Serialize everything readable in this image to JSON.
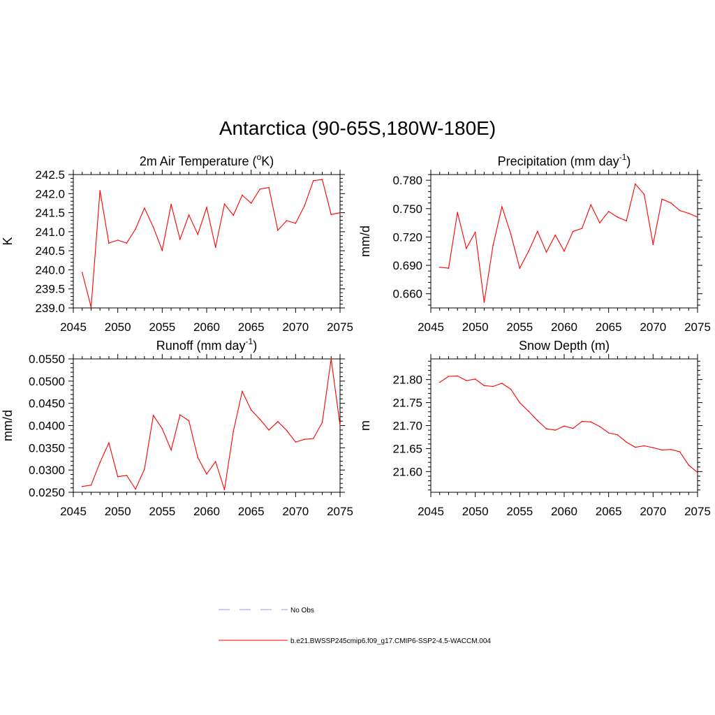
{
  "figure": {
    "title": "Antarctica (90-65S,180W-180E)"
  },
  "colors": {
    "model_line": "#ff0000",
    "obs_line": "#aaaaee",
    "axis": "#000000"
  },
  "legend": {
    "obs_label": "No Obs",
    "model_label": "b.e21.BWSSP245cmip6.f09_g17.CMIP6-SSP2-4.5-WACCM.004"
  },
  "chart_data": [
    {
      "type": "line",
      "title": "2m Air Temperature (°K)",
      "title_parts": {
        "before": "2m Air Temperature (",
        "sup": "o",
        "after": "K)"
      },
      "ylabel": "K",
      "xlim": [
        2045,
        2075
      ],
      "ylim": [
        239.0,
        242.5
      ],
      "xticks": [
        2045,
        2050,
        2055,
        2060,
        2065,
        2070,
        2075
      ],
      "yticks": [
        239.0,
        239.5,
        240.0,
        240.5,
        241.0,
        241.5,
        242.0,
        242.5
      ],
      "ytick_labels": [
        "239.0",
        "239.5",
        "240.0",
        "240.5",
        "241.0",
        "241.5",
        "242.0",
        "242.5"
      ],
      "x": [
        2046,
        2047,
        2048,
        2049,
        2050,
        2051,
        2052,
        2053,
        2054,
        2055,
        2056,
        2057,
        2058,
        2059,
        2060,
        2061,
        2062,
        2063,
        2064,
        2065,
        2066,
        2067,
        2068,
        2069,
        2070,
        2071,
        2072,
        2073,
        2074,
        2075
      ],
      "series": [
        {
          "name": "b.e21.BWSSP245cmip6.f09_g17.CMIP6-SSP2-4.5-WACCM.004",
          "values": [
            239.93,
            239.02,
            242.08,
            240.7,
            240.78,
            240.7,
            241.07,
            241.62,
            241.12,
            240.51,
            241.72,
            240.8,
            241.44,
            240.93,
            241.64,
            240.59,
            241.73,
            241.43,
            241.96,
            241.75,
            242.12,
            242.16,
            241.04,
            241.29,
            241.22,
            241.68,
            242.34,
            242.37,
            241.45,
            241.5
          ]
        }
      ]
    },
    {
      "type": "line",
      "title": "Precipitation (mm day-1)",
      "title_parts": {
        "before": "Precipitation (mm day",
        "sup": "-1",
        "after": ")"
      },
      "ylabel": "mm/d",
      "xlim": [
        2045,
        2075
      ],
      "ylim": [
        0.645,
        0.786
      ],
      "xticks": [
        2045,
        2050,
        2055,
        2060,
        2065,
        2070,
        2075
      ],
      "yticks": [
        0.66,
        0.69,
        0.72,
        0.75,
        0.78
      ],
      "ytick_labels": [
        "0.660",
        "0.690",
        "0.720",
        "0.750",
        "0.780"
      ],
      "x": [
        2046,
        2047,
        2048,
        2049,
        2050,
        2051,
        2052,
        2053,
        2054,
        2055,
        2056,
        2057,
        2058,
        2059,
        2060,
        2061,
        2062,
        2063,
        2064,
        2065,
        2066,
        2067,
        2068,
        2069,
        2070,
        2071,
        2072,
        2073,
        2074,
        2075
      ],
      "series": [
        {
          "name": "b.e21.BWSSP245cmip6.f09_g17.CMIP6-SSP2-4.5-WACCM.004",
          "values": [
            0.688,
            0.687,
            0.746,
            0.708,
            0.725,
            0.651,
            0.711,
            0.752,
            0.723,
            0.687,
            0.705,
            0.726,
            0.704,
            0.722,
            0.705,
            0.726,
            0.729,
            0.754,
            0.735,
            0.747,
            0.741,
            0.737,
            0.776,
            0.765,
            0.712,
            0.76,
            0.756,
            0.748,
            0.745,
            0.741
          ]
        }
      ]
    },
    {
      "type": "line",
      "title": "Runoff (mm day-1)",
      "title_parts": {
        "before": "Runoff (mm day",
        "sup": "-1",
        "after": ")"
      },
      "ylabel": "mm/d",
      "xlim": [
        2045,
        2075
      ],
      "ylim": [
        0.025,
        0.055
      ],
      "xticks": [
        2045,
        2050,
        2055,
        2060,
        2065,
        2070,
        2075
      ],
      "yticks": [
        0.025,
        0.03,
        0.035,
        0.04,
        0.045,
        0.05,
        0.055
      ],
      "ytick_labels": [
        "0.0250",
        "0.0300",
        "0.0350",
        "0.0400",
        "0.0450",
        "0.0500",
        "0.0550"
      ],
      "x": [
        2046,
        2047,
        2048,
        2049,
        2050,
        2051,
        2052,
        2053,
        2054,
        2055,
        2056,
        2057,
        2058,
        2059,
        2060,
        2061,
        2062,
        2063,
        2064,
        2065,
        2066,
        2067,
        2068,
        2069,
        2070,
        2071,
        2072,
        2073,
        2074,
        2075
      ],
      "series": [
        {
          "name": "b.e21.BWSSP245cmip6.f09_g17.CMIP6-SSP2-4.5-WACCM.004",
          "values": [
            0.0263,
            0.0266,
            0.0317,
            0.0361,
            0.0285,
            0.0288,
            0.0257,
            0.0302,
            0.0423,
            0.0393,
            0.0345,
            0.0424,
            0.0411,
            0.0328,
            0.0291,
            0.0319,
            0.0256,
            0.0387,
            0.0477,
            0.0435,
            0.0414,
            0.039,
            0.0409,
            0.0389,
            0.0363,
            0.0369,
            0.0371,
            0.0407,
            0.055,
            0.04
          ]
        }
      ]
    },
    {
      "type": "line",
      "title": "Snow Depth (m)",
      "title_parts": {
        "before": "Snow Depth (m)",
        "sup": "",
        "after": ""
      },
      "ylabel": "m",
      "xlim": [
        2045,
        2075
      ],
      "ylim": [
        21.555,
        21.845
      ],
      "xticks": [
        2045,
        2050,
        2055,
        2060,
        2065,
        2070,
        2075
      ],
      "yticks": [
        21.6,
        21.65,
        21.7,
        21.75,
        21.8
      ],
      "ytick_labels": [
        "21.60",
        "21.65",
        "21.70",
        "21.75",
        "21.80"
      ],
      "x": [
        2046,
        2047,
        2048,
        2049,
        2050,
        2051,
        2052,
        2053,
        2054,
        2055,
        2056,
        2057,
        2058,
        2059,
        2060,
        2061,
        2062,
        2063,
        2064,
        2065,
        2066,
        2067,
        2068,
        2069,
        2070,
        2071,
        2072,
        2073,
        2074,
        2075
      ],
      "series": [
        {
          "name": "b.e21.BWSSP245cmip6.f09_g17.CMIP6-SSP2-4.5-WACCM.004",
          "values": [
            21.794,
            21.807,
            21.808,
            21.798,
            21.801,
            21.787,
            21.785,
            21.792,
            21.779,
            21.75,
            21.731,
            21.711,
            21.693,
            21.69,
            21.699,
            21.694,
            21.709,
            21.708,
            21.698,
            21.684,
            21.68,
            21.664,
            21.653,
            21.656,
            21.652,
            21.647,
            21.648,
            21.643,
            21.614,
            21.598
          ]
        }
      ]
    }
  ]
}
